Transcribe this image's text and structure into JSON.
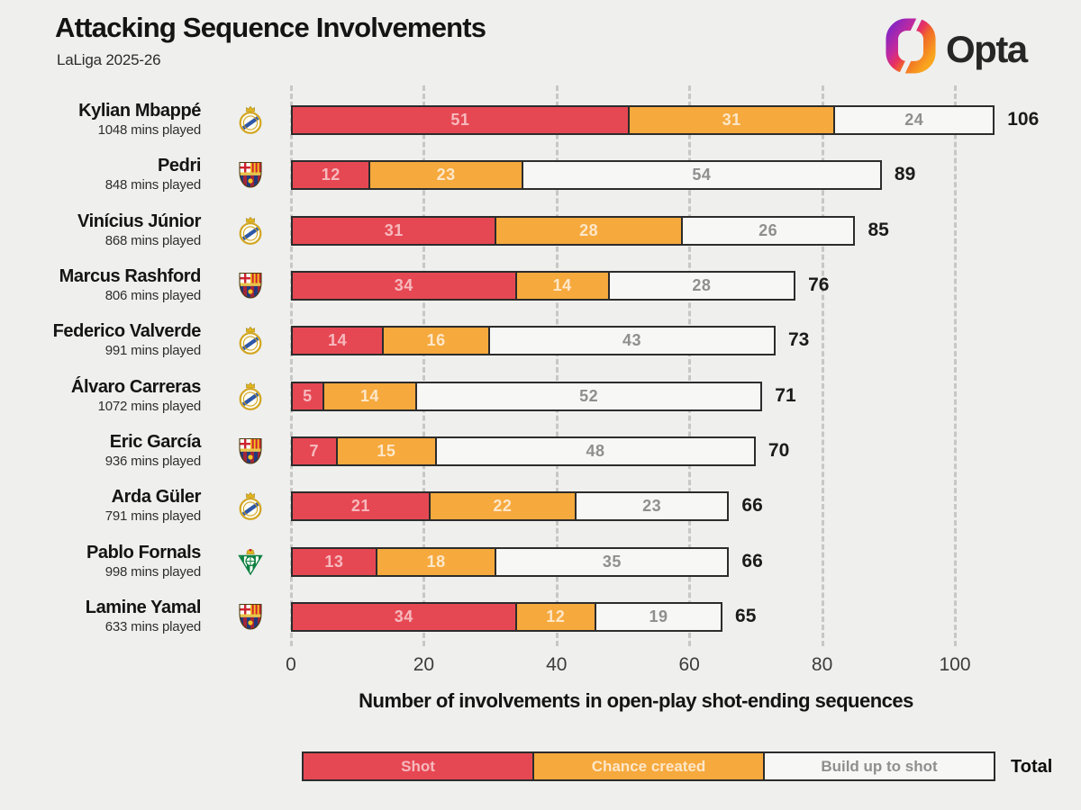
{
  "header": {
    "title": "Attacking Sequence Involvements",
    "subtitle": "LaLiga 2025-26",
    "brand": "Opta"
  },
  "chart_data": {
    "type": "bar",
    "orientation": "horizontal",
    "stacked": true,
    "title": "Attacking Sequence Involvements",
    "subtitle": "LaLiga 2025-26",
    "xlabel": "Number of involvements in open-play shot-ending sequences",
    "x_ticks": [
      0,
      20,
      40,
      60,
      80,
      100
    ],
    "xlim": [
      0,
      110
    ],
    "grid": "vertical-dashed",
    "series_names": [
      "Shot",
      "Chance created",
      "Build up to shot"
    ],
    "players": [
      {
        "name": "Kylian Mbappé",
        "mins": "1048 mins played",
        "club": "Real Madrid",
        "badge": "real-madrid",
        "values": [
          51,
          31,
          24
        ],
        "total": 106
      },
      {
        "name": "Pedri",
        "mins": "848 mins played",
        "club": "Barcelona",
        "badge": "barcelona",
        "values": [
          12,
          23,
          54
        ],
        "total": 89
      },
      {
        "name": "Vinícius Júnior",
        "mins": "868 mins played",
        "club": "Real Madrid",
        "badge": "real-madrid",
        "values": [
          31,
          28,
          26
        ],
        "total": 85
      },
      {
        "name": "Marcus Rashford",
        "mins": "806 mins played",
        "club": "Barcelona",
        "badge": "barcelona",
        "values": [
          34,
          14,
          28
        ],
        "total": 76
      },
      {
        "name": "Federico Valverde",
        "mins": "991 mins played",
        "club": "Real Madrid",
        "badge": "real-madrid",
        "values": [
          14,
          16,
          43
        ],
        "total": 73
      },
      {
        "name": "Álvaro Carreras",
        "mins": "1072 mins played",
        "club": "Real Madrid",
        "badge": "real-madrid",
        "values": [
          5,
          14,
          52
        ],
        "total": 71
      },
      {
        "name": "Eric García",
        "mins": "936 mins played",
        "club": "Barcelona",
        "badge": "barcelona",
        "values": [
          7,
          15,
          48
        ],
        "total": 70
      },
      {
        "name": "Arda Güler",
        "mins": "791 mins played",
        "club": "Real Madrid",
        "badge": "real-madrid",
        "values": [
          21,
          22,
          23
        ],
        "total": 66
      },
      {
        "name": "Pablo Fornals",
        "mins": "998 mins played",
        "club": "Real Betis",
        "badge": "betis",
        "values": [
          13,
          18,
          35
        ],
        "total": 66
      },
      {
        "name": "Lamine Yamal",
        "mins": "633 mins played",
        "club": "Barcelona",
        "badge": "barcelona",
        "values": [
          34,
          12,
          19
        ],
        "total": 65
      }
    ]
  },
  "legend": {
    "items": [
      {
        "label": "Shot",
        "color": "#e64853",
        "text_color": "rgba(255,255,255,0.62)"
      },
      {
        "label": "Chance created",
        "color": "#f6a93d",
        "text_color": "rgba(255,255,255,0.72)"
      },
      {
        "label": "Build up to shot",
        "color": "#f7f7f6",
        "text_color": "#8f8f8f"
      }
    ],
    "total_label": "Total"
  },
  "colors": {
    "background": "#efefee",
    "shot": "#e64853",
    "chance_created": "#f6a93d",
    "build_up_to_shot": "#f7f7f6",
    "bar_border": "#2c2c2c",
    "gridline": "#c7c7c6",
    "title_text": "#141414",
    "total_text": "#1b1b1b",
    "opta_gradient": [
      "#8626c3",
      "#d02d86",
      "#ee5330",
      "#f9a51d"
    ]
  }
}
